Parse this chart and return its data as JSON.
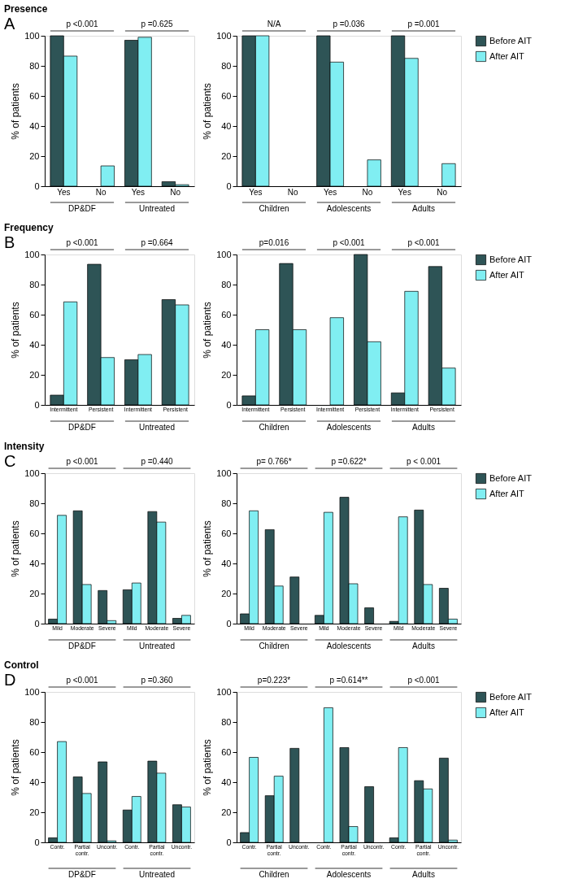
{
  "chart_data": [
    {
      "type": "bar",
      "title": "Presence",
      "ylabel": "% of patients",
      "categories": [
        "Yes",
        "No",
        "Yes",
        "No"
      ],
      "series": [
        {
          "color": "#2e5456",
          "values": [
            100,
            0,
            97,
            3
          ]
        },
        {
          "color": "#80eef2",
          "values": [
            86.5,
            13.5,
            99,
            1
          ]
        }
      ],
      "ylim": [
        0,
        100
      ],
      "yticks": [
        0,
        20,
        40,
        60,
        80,
        100
      ],
      "annotations": [
        "A",
        "p <0.001",
        "p =0.625",
        "DP&DF",
        "Untreated"
      ]
    },
    {
      "type": "bar",
      "ylabel": "% of patients",
      "categories": [
        "Yes",
        "No",
        "Yes",
        "No",
        "Yes",
        "No"
      ],
      "series": [
        {
          "name": "Before AIT",
          "color": "#2e5456",
          "values": [
            100,
            0,
            100,
            0,
            100,
            0
          ]
        },
        {
          "name": "After AIT",
          "color": "#80eef2",
          "values": [
            100,
            0,
            82.5,
            17.5,
            85,
            15
          ]
        }
      ],
      "ylim": [
        0,
        100
      ],
      "yticks": [
        0,
        20,
        40,
        60,
        80,
        100
      ],
      "legend": "top right",
      "annotations": [
        "N/A",
        "p =0.036",
        "p =0.001",
        "Children",
        "Adolescents",
        "Adults"
      ]
    },
    {
      "type": "bar",
      "title": "Frequency",
      "ylabel": "% of patients",
      "categories": [
        "Intermittent",
        "Persistent",
        "Intermittent",
        "Persistent"
      ],
      "series": [
        {
          "color": "#2e5456",
          "values": [
            6.5,
            93.5,
            30,
            70
          ]
        },
        {
          "color": "#80eef2",
          "values": [
            68.5,
            31.5,
            33.5,
            66.5
          ]
        }
      ],
      "ylim": [
        0,
        100
      ],
      "yticks": [
        0,
        20,
        40,
        60,
        80,
        100
      ],
      "annotations": [
        "B",
        "p <0.001",
        "p =0.664",
        "DP&DF",
        "Untreated"
      ]
    },
    {
      "type": "bar",
      "ylabel": "% of patients",
      "categories": [
        "Intermittent",
        "Persistent",
        "Intermittent",
        "Persistent",
        "Intermittent",
        "Persistent"
      ],
      "series": [
        {
          "name": "Before AIT",
          "color": "#2e5456",
          "values": [
            6,
            94,
            0,
            100,
            8,
            92
          ]
        },
        {
          "name": "After AIT",
          "color": "#80eef2",
          "values": [
            50,
            50,
            58,
            42,
            75.5,
            24.5
          ]
        }
      ],
      "ylim": [
        0,
        100
      ],
      "yticks": [
        0,
        20,
        40,
        60,
        80,
        100
      ],
      "legend": "top right",
      "annotations": [
        "p=0.016",
        "p <0.001",
        "p <0.001",
        "Children",
        "Adolescents",
        "Adults"
      ]
    },
    {
      "type": "bar",
      "title": "Intensity",
      "ylabel": "% of patients",
      "categories": [
        "Mild",
        "Moderate",
        "Severe",
        "Mild",
        "Moderate",
        "Severe"
      ],
      "series": [
        {
          "color": "#2e5456",
          "values": [
            3,
            75,
            22,
            22.5,
            74.5,
            3.5
          ]
        },
        {
          "color": "#80eef2",
          "values": [
            72,
            26,
            2,
            27,
            67.5,
            5.5
          ]
        }
      ],
      "ylim": [
        0,
        100
      ],
      "yticks": [
        0,
        20,
        40,
        60,
        80,
        100
      ],
      "annotations": [
        "C",
        "p <0.001",
        "p =0.440",
        "DP&DF",
        "Untreated"
      ]
    },
    {
      "type": "bar",
      "ylabel": "% of patients",
      "categories": [
        "Mild",
        "Moderate",
        "Severe",
        "Mild",
        "Moderate",
        "Severe",
        "Mild",
        "Moderate",
        "Severe"
      ],
      "series": [
        {
          "name": "Before AIT",
          "color": "#2e5456",
          "values": [
            6.5,
            62.5,
            31,
            5.5,
            84,
            10.5,
            1.5,
            75.5,
            23.5
          ]
        },
        {
          "name": "After AIT",
          "color": "#80eef2",
          "values": [
            75,
            25,
            0,
            74,
            26.5,
            0,
            71,
            26,
            3
          ]
        }
      ],
      "ylim": [
        0,
        100
      ],
      "yticks": [
        0,
        20,
        40,
        60,
        80,
        100
      ],
      "legend": "top right",
      "annotations": [
        "p= 0.766*",
        "p =0.622*",
        "p < 0.001",
        "Children",
        "Adolescents",
        "Adults"
      ]
    },
    {
      "type": "bar",
      "title": "Control",
      "ylabel": "% of patients",
      "categories": [
        "Contr.",
        "Partial contr.",
        "Uncontr.",
        "Contr.",
        "Partial contr.",
        "Uncontr."
      ],
      "series": [
        {
          "color": "#2e5456",
          "values": [
            3,
            43.5,
            53.5,
            21.5,
            54,
            25
          ]
        },
        {
          "color": "#80eef2",
          "values": [
            67,
            32.5,
            1,
            30.5,
            46,
            23.5
          ]
        }
      ],
      "ylim": [
        0,
        100
      ],
      "yticks": [
        0,
        20,
        40,
        60,
        80,
        100
      ],
      "annotations": [
        "D",
        "p <0.001",
        "p =0.360",
        "DP&DF",
        "Untreated"
      ]
    },
    {
      "type": "bar",
      "ylabel": "% of patients",
      "categories": [
        "Contr.",
        "Partial contr.",
        "Uncontr.",
        "Contr.",
        "Partial contr.",
        "Uncontr.",
        "Contr.",
        "Partial contr.",
        "Uncontr."
      ],
      "series": [
        {
          "name": "Before AIT",
          "color": "#2e5456",
          "values": [
            6.5,
            31,
            62.5,
            0,
            63,
            37,
            3,
            41,
            56
          ]
        },
        {
          "name": "After AIT",
          "color": "#80eef2",
          "values": [
            56.5,
            44,
            0,
            89.5,
            10.5,
            0,
            63,
            35.5,
            1.5
          ]
        }
      ],
      "ylim": [
        0,
        100
      ],
      "yticks": [
        0,
        20,
        40,
        60,
        80,
        100
      ],
      "legend": "top right",
      "annotations": [
        "p=0.223*",
        "p =0.614**",
        "p <0.001",
        "Children",
        "Adolescents",
        "Adults"
      ]
    }
  ]
}
